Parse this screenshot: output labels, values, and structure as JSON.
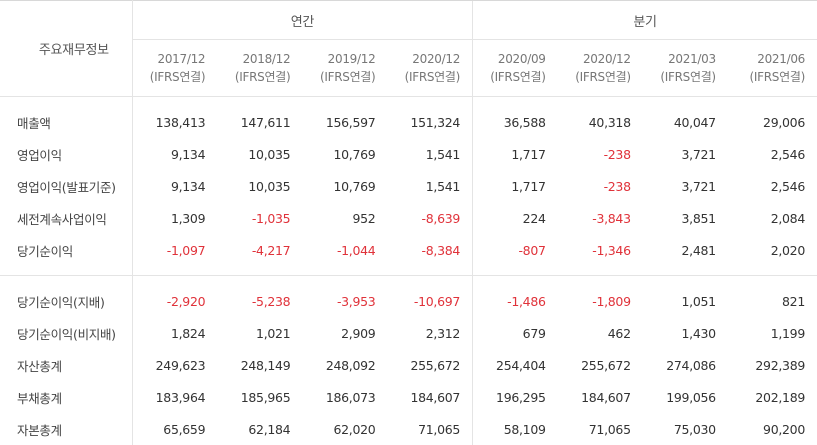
{
  "header": {
    "label": "주요재무정보",
    "annual_group": "연간",
    "quarter_group": "분기",
    "periods": [
      {
        "date": "2017/12",
        "basis": "(IFRS연결)"
      },
      {
        "date": "2018/12",
        "basis": "(IFRS연결)"
      },
      {
        "date": "2019/12",
        "basis": "(IFRS연결)"
      },
      {
        "date": "2020/12",
        "basis": "(IFRS연결)"
      },
      {
        "date": "2020/09",
        "basis": "(IFRS연결)"
      },
      {
        "date": "2020/12",
        "basis": "(IFRS연결)"
      },
      {
        "date": "2021/03",
        "basis": "(IFRS연결)"
      },
      {
        "date": "2021/06",
        "basis": "(IFRS연결)"
      }
    ]
  },
  "rows": [
    {
      "label": "매출액",
      "values": [
        "138,413",
        "147,611",
        "156,597",
        "151,324",
        "36,588",
        "40,318",
        "40,047",
        "29,006"
      ]
    },
    {
      "label": "영업이익",
      "values": [
        "9,134",
        "10,035",
        "10,769",
        "1,541",
        "1,717",
        "-238",
        "3,721",
        "2,546"
      ]
    },
    {
      "label": "영업이익(발표기준)",
      "values": [
        "9,134",
        "10,035",
        "10,769",
        "1,541",
        "1,717",
        "-238",
        "3,721",
        "2,546"
      ]
    },
    {
      "label": "세전계속사업이익",
      "values": [
        "1,309",
        "-1,035",
        "952",
        "-8,639",
        "224",
        "-3,843",
        "3,851",
        "2,084"
      ]
    },
    {
      "label": "당기순이익",
      "values": [
        "-1,097",
        "-4,217",
        "-1,044",
        "-8,384",
        "-807",
        "-1,346",
        "2,481",
        "2,020"
      ]
    },
    {
      "label": "당기순이익(지배)",
      "values": [
        "-2,920",
        "-5,238",
        "-3,953",
        "-10,697",
        "-1,486",
        "-1,809",
        "1,051",
        "821"
      ]
    },
    {
      "label": "당기순이익(비지배)",
      "values": [
        "1,824",
        "1,021",
        "2,909",
        "2,312",
        "679",
        "462",
        "1,430",
        "1,199"
      ]
    },
    {
      "label": "자산총계",
      "values": [
        "249,623",
        "248,149",
        "248,092",
        "255,672",
        "254,404",
        "255,672",
        "274,086",
        "292,389"
      ]
    },
    {
      "label": "부채총계",
      "values": [
        "183,964",
        "185,965",
        "186,073",
        "184,607",
        "196,295",
        "184,607",
        "199,056",
        "202,189"
      ]
    },
    {
      "label": "자본총계",
      "values": [
        "65,659",
        "62,184",
        "62,020",
        "71,065",
        "58,109",
        "71,065",
        "75,030",
        "90,200"
      ]
    }
  ],
  "colors": {
    "negative": "#e0323a",
    "text": "#333333",
    "border": "#e4e4e4"
  }
}
